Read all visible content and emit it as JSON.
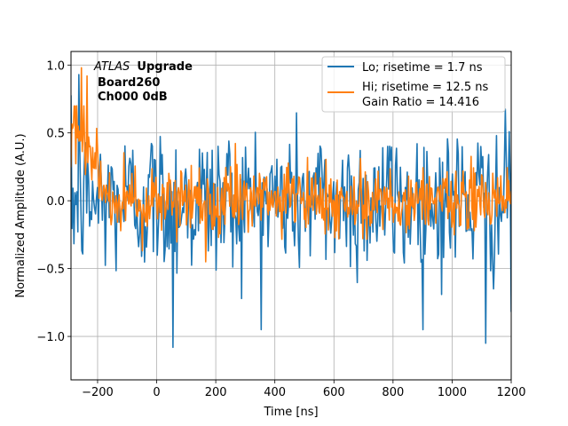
{
  "chart_data": {
    "type": "line",
    "title": "",
    "xlabel": "Time [ns]",
    "ylabel": "Normalized Amplitude (A.U.)",
    "xlim": [
      -290,
      1200
    ],
    "ylim": [
      -1.32,
      1.1
    ],
    "x_ticks": [
      -200,
      0,
      200,
      400,
      600,
      800,
      1000,
      1200
    ],
    "x_tick_labels": [
      "−200",
      "0",
      "200",
      "400",
      "600",
      "800",
      "1000",
      "1200"
    ],
    "y_ticks": [
      -1.0,
      -0.5,
      0.0,
      0.5,
      1.0
    ],
    "y_tick_labels": [
      "−1.0",
      "−0.5",
      "0.0",
      "0.5",
      "1.0"
    ],
    "grid": true,
    "legend_position": "top-right",
    "annotation": {
      "italic": "ATLAS",
      "bold": "Upgrade",
      "line2": "Board260",
      "line3": "Ch000 0dB"
    },
    "series": [
      {
        "name": "Lo; risetime = 1.7 ns",
        "color": "#1f77b4",
        "style": "noise",
        "x_start": -290,
        "x_end": 1200,
        "n_points": 450,
        "baseline": 0.0,
        "noise_sd": 0.28,
        "peaks": [
          {
            "x": -264,
            "y": 0.93
          },
          {
            "x": 55,
            "y": -1.08
          },
          {
            "x": 1115,
            "y": -1.05
          },
          {
            "x": 1200,
            "y": -0.82
          }
        ]
      },
      {
        "name": "Hi; risetime = 12.5 ns\n Gain Ratio = 14.416",
        "color": "#ff7f0e",
        "style": "noise",
        "x_start": -290,
        "x_end": 1200,
        "n_points": 550,
        "baseline": 0.0,
        "noise_sd": 0.13,
        "pulse": {
          "x_start": -290,
          "x_end": -150,
          "amplitude": 0.55
        },
        "peaks": [
          {
            "x": -255,
            "y": 0.98
          },
          {
            "x": -235,
            "y": 0.92
          },
          {
            "x": 165,
            "y": -0.45
          }
        ]
      }
    ]
  }
}
